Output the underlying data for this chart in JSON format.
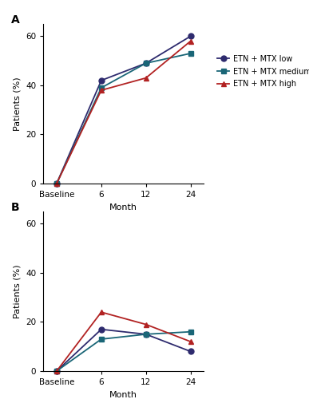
{
  "x_labels": [
    "Baseline",
    "6",
    "12",
    "24"
  ],
  "x_positions": [
    0,
    1,
    2,
    3
  ],
  "panel_A": {
    "low": [
      0,
      42,
      49,
      60
    ],
    "medium": [
      0,
      39,
      49,
      53
    ],
    "high": [
      0,
      38,
      43,
      58
    ]
  },
  "panel_B": {
    "low": [
      0,
      17,
      15,
      8
    ],
    "medium": [
      0,
      13,
      15,
      16
    ],
    "high": [
      0,
      24,
      19,
      12
    ]
  },
  "color_low": "#2e2b6e",
  "color_medium": "#1a6677",
  "color_high": "#b22222",
  "ylim": [
    0,
    65
  ],
  "yticks": [
    0,
    20,
    40,
    60
  ],
  "ylabel": "Patients (%)",
  "xlabel": "Month",
  "label_low": "ETN + MTX low",
  "label_medium": "ETN + MTX medium",
  "label_high": "ETN + MTX high",
  "marker_low": "o",
  "marker_medium": "s",
  "marker_high": "^",
  "markersize": 5,
  "linewidth": 1.3,
  "fontsize_label": 8,
  "fontsize_tick": 7.5,
  "fontsize_panel": 10,
  "fontsize_legend": 7
}
